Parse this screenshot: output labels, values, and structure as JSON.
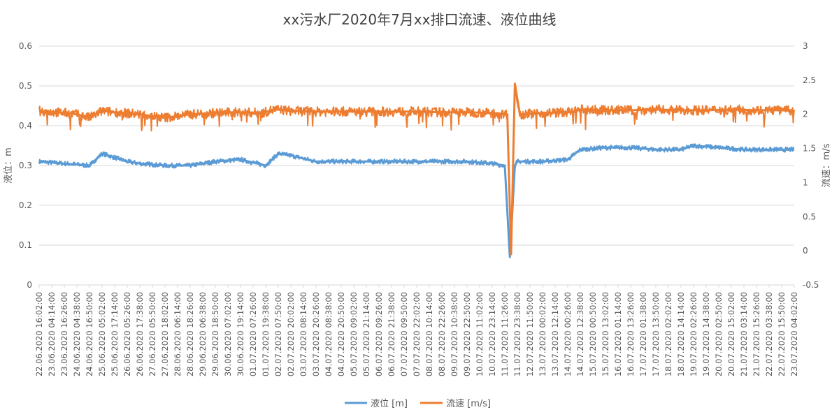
{
  "chart_data": {
    "type": "line",
    "title": "xx污水厂2020年7月xx排口流速、液位曲线",
    "y_left": {
      "label": "液位：m",
      "ticks": [
        "0",
        "0.1",
        "0.2",
        "0.3",
        "0.4",
        "0.5",
        "0.6"
      ],
      "ylim": [
        0,
        0.6
      ]
    },
    "y_right": {
      "label": "流速：m/s",
      "ticks": [
        "-0.5",
        "0",
        "0.5",
        "1",
        "1.5",
        "2",
        "2.5",
        "3"
      ],
      "ylim": [
        -0.5,
        3
      ]
    },
    "x_tick_labels": [
      "22.06.2020 16:02:00",
      "23.06.2020 04:14:00",
      "23.06.2020 16:26:00",
      "24.06.2020 04:38:00",
      "24.06.2020 16:50:00",
      "25.06.2020 05:02:00",
      "25.06.2020 17:14:00",
      "26.06.2020 05:26:00",
      "26.06.2020 17:38:00",
      "27.06.2020 05:50:00",
      "27.06.2020 18:02:00",
      "28.06.2020 06:14:00",
      "28.06.2020 18:26:00",
      "29.06.2020 06:38:00",
      "29.06.2020 18:50:00",
      "30.06.2020 07:02:00",
      "30.06.2020 19:14:00",
      "01.07.2020 07:26:00",
      "01.07.2020 19:38:00",
      "02.07.2020 07:50:00",
      "02.07.2020 20:02:00",
      "03.07.2020 08:14:00",
      "03.07.2020 20:26:00",
      "04.07.2020 08:38:00",
      "04.07.2020 20:50:00",
      "05.07.2020 09:02:00",
      "05.07.2020 21:14:00",
      "06.07.2020 09:26:00",
      "06.07.2020 21:38:00",
      "07.07.2020 09:50:00",
      "07.07.2020 22:02:00",
      "08.07.2020 10:14:00",
      "08.07.2020 22:26:00",
      "09.07.2020 10:38:00",
      "09.07.2020 22:50:00",
      "10.07.2020 11:02:00",
      "10.07.2020 23:14:00",
      "11.07.2020 11:26:00",
      "11.07.2020 23:38:00",
      "12.07.2020 11:50:00",
      "13.07.2020 00:02:00",
      "13.07.2020 12:14:00",
      "14.07.2020 00:26:00",
      "14.07.2020 12:38:00",
      "15.07.2020 00:50:00",
      "15.07.2020 13:02:00",
      "16.07.2020 01:14:00",
      "16.07.2020 13:26:00",
      "17.07.2020 01:38:00",
      "17.07.2020 13:50:00",
      "18.07.2020 02:02:00",
      "18.07.2020 14:14:00",
      "19.07.2020 02:26:00",
      "19.07.2020 14:38:00",
      "20.07.2020 02:50:00",
      "20.07.2020 15:02:00",
      "21.07.2020 03:14:00",
      "21.07.2020 15:26:00",
      "22.07.2020 03:38:00",
      "22.07.2020 15:50:00",
      "23.07.2020 04:02:00"
    ],
    "series": [
      {
        "name": "液位 [m]",
        "axis": "left",
        "color": "#5b9bd5",
        "x_index": [
          0,
          2,
          4,
          5,
          6,
          7,
          8,
          10,
          12,
          14,
          16,
          18,
          19,
          20,
          22,
          24,
          26,
          28,
          30,
          32,
          34,
          36,
          37,
          37.4,
          37.8,
          38,
          40,
          42,
          43,
          45,
          47,
          49,
          51,
          52,
          54,
          56,
          58,
          60
        ],
        "values": [
          0.31,
          0.305,
          0.3,
          0.33,
          0.32,
          0.31,
          0.305,
          0.3,
          0.3,
          0.31,
          0.315,
          0.3,
          0.33,
          0.325,
          0.31,
          0.31,
          0.31,
          0.31,
          0.31,
          0.31,
          0.31,
          0.305,
          0.3,
          0.07,
          0.3,
          0.31,
          0.31,
          0.315,
          0.34,
          0.345,
          0.345,
          0.34,
          0.34,
          0.35,
          0.345,
          0.34,
          0.34,
          0.34
        ]
      },
      {
        "name": "流速 [m/s]",
        "axis": "right",
        "color": "#ed7d31",
        "x_index": [
          0,
          2,
          3,
          4,
          5,
          6,
          8,
          10,
          12,
          14,
          16,
          17.8,
          18.4,
          19,
          20,
          22,
          24,
          26,
          28,
          30,
          32,
          34,
          36,
          37.2,
          37.5,
          37.8,
          38.2,
          40,
          42,
          42.5,
          43,
          45,
          47,
          49,
          51,
          53,
          55,
          57,
          59,
          60
        ],
        "values": [
          2.05,
          2.02,
          2.0,
          1.95,
          2.05,
          2.03,
          2.0,
          1.95,
          2.0,
          2.02,
          2.03,
          2.02,
          2.06,
          2.07,
          2.05,
          2.04,
          2.04,
          2.04,
          2.04,
          2.04,
          2.03,
          2.03,
          2.02,
          2.0,
          -0.05,
          2.45,
          2.0,
          2.02,
          2.03,
          2.04,
          2.07,
          2.06,
          2.06,
          2.07,
          2.06,
          2.06,
          2.07,
          2.06,
          2.06,
          2.05
        ]
      }
    ],
    "legend_position": "bottom",
    "grid": true
  }
}
